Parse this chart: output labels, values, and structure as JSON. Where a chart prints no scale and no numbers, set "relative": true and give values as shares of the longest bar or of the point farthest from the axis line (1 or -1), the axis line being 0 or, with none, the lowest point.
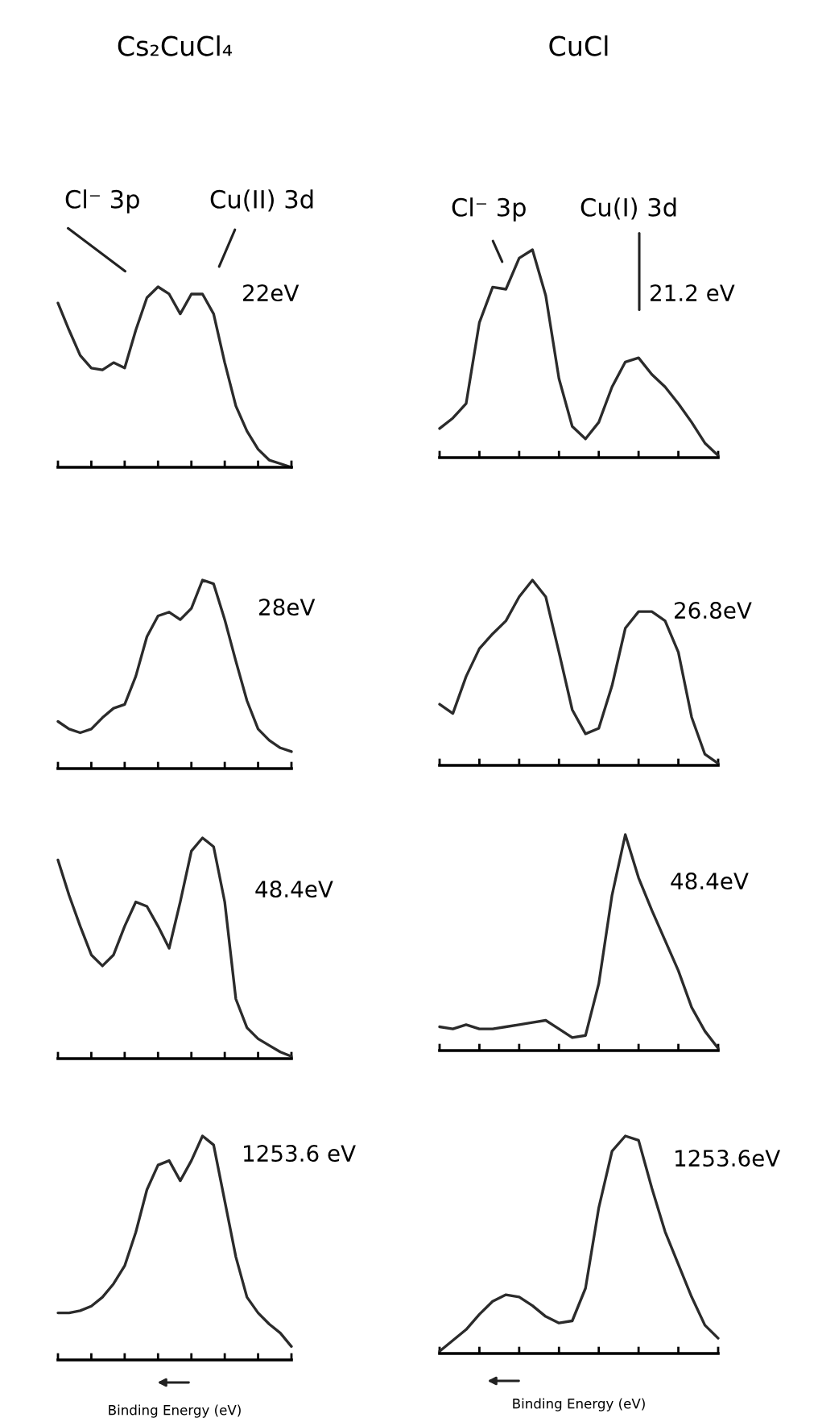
{
  "chart_data": [
    {
      "type": "line",
      "title": "Cs₂CuCl₄",
      "relative": true,
      "tick_labels": false,
      "color": "#2b2b2b",
      "annotations": [
        "22eV",
        "Cl⁻ 3p",
        "Cu(II) 3d"
      ],
      "categories": [
        null,
        null,
        null,
        null,
        null,
        null,
        null,
        null,
        null,
        null,
        null,
        null,
        null,
        null,
        null,
        null,
        null,
        null,
        null,
        null,
        null,
        null
      ],
      "values": [
        0.91,
        0.76,
        0.62,
        0.55,
        0.54,
        0.58,
        0.55,
        0.76,
        0.94,
        1.0,
        0.96,
        0.85,
        0.96,
        0.96,
        0.85,
        0.58,
        0.34,
        0.2,
        0.1,
        0.04,
        0.02,
        0
      ]
    },
    {
      "type": "line",
      "title": "CuCl",
      "relative": true,
      "tick_labels": false,
      "color": "#2b2b2b",
      "annotations": [
        "21.2 eV",
        "Cl⁻ 3p",
        "Cu(I) 3d"
      ],
      "categories": [
        null,
        null,
        null,
        null,
        null,
        null,
        null,
        null,
        null,
        null,
        null,
        null,
        null,
        null,
        null,
        null,
        null,
        null,
        null,
        null,
        null,
        null
      ],
      "values": [
        0.14,
        0.19,
        0.26,
        0.65,
        0.82,
        0.81,
        0.96,
        1.0,
        0.78,
        0.38,
        0.15,
        0.09,
        0.17,
        0.34,
        0.46,
        0.48,
        0.4,
        0.34,
        0.26,
        0.17,
        0.07,
        0.01
      ]
    },
    {
      "type": "line",
      "relative": true,
      "tick_labels": false,
      "color": "#2b2b2b",
      "annotations": [
        "28eV"
      ],
      "categories": [
        null,
        null,
        null,
        null,
        null,
        null,
        null,
        null,
        null,
        null,
        null,
        null,
        null,
        null,
        null,
        null,
        null,
        null,
        null,
        null,
        null,
        null
      ],
      "values": [
        0.25,
        0.21,
        0.19,
        0.21,
        0.27,
        0.32,
        0.34,
        0.49,
        0.7,
        0.81,
        0.83,
        0.79,
        0.85,
        1.0,
        0.98,
        0.79,
        0.57,
        0.36,
        0.21,
        0.15,
        0.11,
        0.09
      ]
    },
    {
      "type": "line",
      "relative": true,
      "tick_labels": false,
      "color": "#2b2b2b",
      "annotations": [
        "26.8eV"
      ],
      "categories": [
        null,
        null,
        null,
        null,
        null,
        null,
        null,
        null,
        null,
        null,
        null,
        null,
        null,
        null,
        null,
        null,
        null,
        null,
        null,
        null,
        null,
        null
      ],
      "values": [
        0.33,
        0.28,
        0.48,
        0.63,
        0.71,
        0.78,
        0.91,
        1.0,
        0.91,
        0.61,
        0.3,
        0.17,
        0.2,
        0.43,
        0.74,
        0.83,
        0.83,
        0.78,
        0.61,
        0.26,
        0.06,
        0.01
      ]
    },
    {
      "type": "line",
      "relative": true,
      "tick_labels": false,
      "color": "#2b2b2b",
      "annotations": [
        "48.4eV"
      ],
      "categories": [
        null,
        null,
        null,
        null,
        null,
        null,
        null,
        null,
        null,
        null,
        null,
        null,
        null,
        null,
        null,
        null,
        null,
        null,
        null,
        null,
        null,
        null
      ],
      "values": [
        0.9,
        0.74,
        0.6,
        0.47,
        0.42,
        0.47,
        0.6,
        0.71,
        0.69,
        0.6,
        0.5,
        0.71,
        0.94,
        1.0,
        0.96,
        0.71,
        0.27,
        0.14,
        0.09,
        0.06,
        0.03,
        0.01
      ]
    },
    {
      "type": "line",
      "relative": true,
      "tick_labels": false,
      "color": "#2b2b2b",
      "annotations": [
        "48.4eV"
      ],
      "categories": [
        null,
        null,
        null,
        null,
        null,
        null,
        null,
        null,
        null,
        null,
        null,
        null,
        null,
        null,
        null,
        null,
        null,
        null,
        null,
        null,
        null,
        null
      ],
      "values": [
        0.11,
        0.1,
        0.12,
        0.1,
        0.1,
        0.11,
        0.12,
        0.13,
        0.14,
        0.1,
        0.06,
        0.07,
        0.31,
        0.72,
        1.0,
        0.8,
        0.65,
        0.51,
        0.37,
        0.2,
        0.09,
        0.01
      ]
    },
    {
      "type": "line",
      "relative": true,
      "tick_labels": false,
      "color": "#2b2b2b",
      "xlabel": "Binding Energy (eV)",
      "annotations": [
        "1253.6 eV"
      ],
      "categories": [
        null,
        null,
        null,
        null,
        null,
        null,
        null,
        null,
        null,
        null,
        null,
        null,
        null,
        null,
        null,
        null,
        null,
        null,
        null,
        null,
        null,
        null
      ],
      "values": [
        0.21,
        0.21,
        0.22,
        0.24,
        0.28,
        0.34,
        0.42,
        0.57,
        0.76,
        0.87,
        0.89,
        0.8,
        0.89,
        1.0,
        0.96,
        0.71,
        0.46,
        0.28,
        0.21,
        0.16,
        0.12,
        0.06
      ]
    },
    {
      "type": "line",
      "relative": true,
      "tick_labels": false,
      "color": "#2b2b2b",
      "xlabel": "Binding Energy (eV)",
      "annotations": [
        "1253.6eV"
      ],
      "categories": [
        null,
        null,
        null,
        null,
        null,
        null,
        null,
        null,
        null,
        null,
        null,
        null,
        null,
        null,
        null,
        null,
        null,
        null,
        null,
        null,
        null,
        null
      ],
      "values": [
        0.01,
        0.06,
        0.11,
        0.18,
        0.24,
        0.27,
        0.26,
        0.22,
        0.17,
        0.14,
        0.15,
        0.3,
        0.67,
        0.93,
        1.0,
        0.98,
        0.76,
        0.56,
        0.41,
        0.26,
        0.13,
        0.07
      ]
    }
  ]
}
